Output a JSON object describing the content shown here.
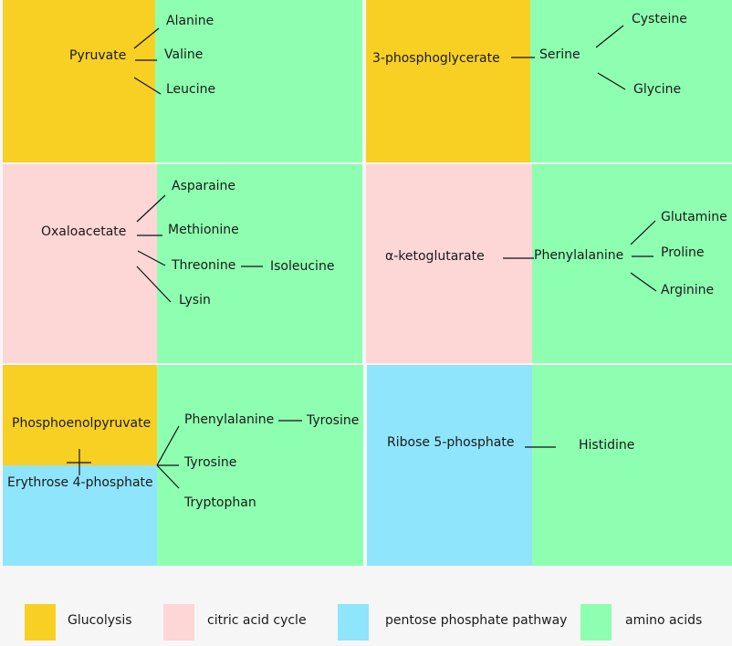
{
  "colors": {
    "glycolysis": "#f8d024",
    "citric_acid_cycle": "#fdd6d6",
    "pentose_phosphate_pathway": "#8fe5fb",
    "amino_acids": "#8effb0",
    "background": "#f6f6f7"
  },
  "panels": {
    "pyruvate": {
      "source": "Pyruvate",
      "products": [
        "Alanine",
        "Valine",
        "Leucine"
      ]
    },
    "phosphoglycerate": {
      "source": "3-phosphoglycerate",
      "intermediate": "Serine",
      "products": [
        "Cysteine",
        "Glycine"
      ]
    },
    "oxaloacetate": {
      "source": "Oxaloacetate",
      "products": [
        "Asparaine",
        "Methionine",
        "Threonine",
        "Lysin"
      ],
      "threonine_product": "Isoleucine"
    },
    "ketoglutarate": {
      "source": "α-ketoglutarate",
      "intermediate": "Phenylalanine",
      "products": [
        "Glutamine",
        "Proline",
        "Arginine"
      ]
    },
    "aromatic": {
      "sources": [
        "Phosphoenolpyruvate",
        "Erythrose 4-phosphate"
      ],
      "products": [
        "Phenylalanine",
        "Tyrosine",
        "Tryptophan"
      ],
      "phenylalanine_product": "Tyrosine"
    },
    "ribose": {
      "source": "Ribose 5-phosphate",
      "products": [
        "Histidine"
      ]
    }
  },
  "legend": [
    {
      "label": "Glucolysis",
      "color": "#f8d024"
    },
    {
      "label": "citric acid cycle",
      "color": "#fdd6d6"
    },
    {
      "label": "pentose phosphate pathway",
      "color": "#8fe5fb"
    },
    {
      "label": "amino acids",
      "color": "#8effb0"
    }
  ]
}
